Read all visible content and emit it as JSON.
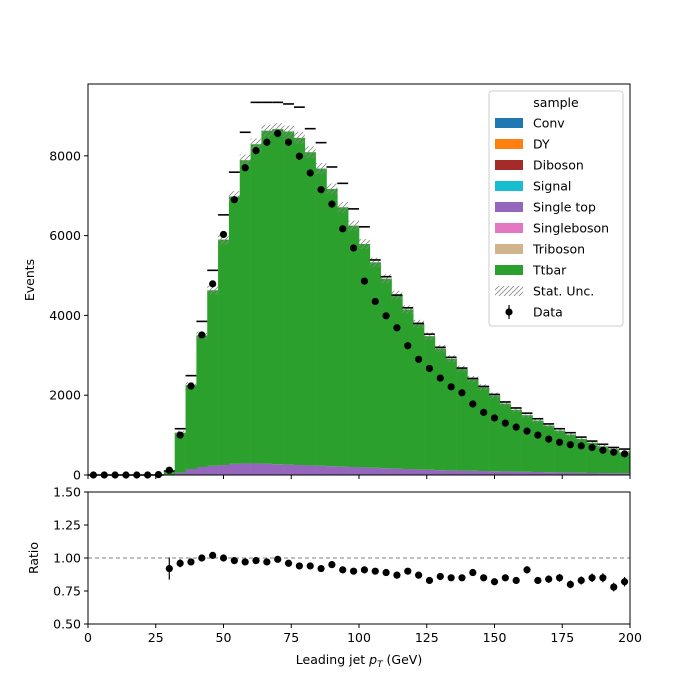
{
  "chart_data": {
    "type": "area",
    "xlabel": "Leading jet  p_T (GeV)",
    "xlabel_main": "Leading jet  ",
    "xlabel_p": "p",
    "xlabel_sub": "T",
    "xlabel_unit": " (GeV)",
    "ylabel": "Events",
    "ratio_ylabel": "Ratio",
    "xlim": [
      0,
      200
    ],
    "ylim": [
      0,
      9800
    ],
    "ratio_ylim": [
      0.5,
      1.5
    ],
    "bin_width": 4,
    "bin_edges_start": 0,
    "x_ticks": [
      "0",
      "25",
      "50",
      "75",
      "100",
      "125",
      "150",
      "175",
      "200"
    ],
    "y_ticks": [
      "0",
      "2000",
      "4000",
      "6000",
      "8000"
    ],
    "ratio_ticks": [
      "0.50",
      "0.75",
      "1.00",
      "1.25",
      "1.50"
    ],
    "legend": {
      "title": "sample",
      "placement": "top-right",
      "entries": [
        {
          "label": "Conv",
          "color": "#1f77b4",
          "kind": "patch"
        },
        {
          "label": "DY",
          "color": "#ff7f0e",
          "kind": "patch"
        },
        {
          "label": "Diboson",
          "color": "#a52a2a",
          "kind": "patch"
        },
        {
          "label": "Signal",
          "color": "#17becf",
          "kind": "patch"
        },
        {
          "label": "Single top",
          "color": "#9467bd",
          "kind": "patch"
        },
        {
          "label": "Singleboson",
          "color": "#e377c2",
          "kind": "patch"
        },
        {
          "label": "Triboson",
          "color": "#d2b48c",
          "kind": "patch"
        },
        {
          "label": "Ttbar",
          "color": "#2ca02c",
          "kind": "patch"
        },
        {
          "label": "Stat. Unc.",
          "color": "#888888",
          "kind": "hatch"
        },
        {
          "label": "Data",
          "color": "#000000",
          "kind": "marker"
        }
      ]
    },
    "series": [
      {
        "name": "Single top",
        "color": "#9467bd",
        "values": [
          0,
          0,
          0,
          0,
          0,
          0,
          0,
          3,
          60,
          150,
          200,
          230,
          250,
          280,
          290,
          290,
          280,
          270,
          260,
          250,
          240,
          230,
          220,
          210,
          200,
          190,
          180,
          170,
          160,
          150,
          140,
          130,
          120,
          115,
          110,
          105,
          100,
          95,
          90,
          85,
          80,
          75,
          70,
          65,
          60,
          55,
          50,
          48,
          46,
          44
        ]
      },
      {
        "name": "Ttbar",
        "color": "#2ca02c",
        "values": [
          0,
          0,
          0,
          0,
          0,
          0,
          0,
          80,
          1000,
          2100,
          3300,
          4400,
          5650,
          6700,
          7600,
          8000,
          8350,
          8400,
          8350,
          8200,
          7850,
          7450,
          6950,
          6500,
          6050,
          5600,
          5150,
          4750,
          4350,
          4000,
          3650,
          3350,
          3050,
          2800,
          2550,
          2300,
          2100,
          1900,
          1700,
          1550,
          1420,
          1290,
          1170,
          1050,
          955,
          850,
          760,
          670,
          600,
          520
        ]
      }
    ],
    "data_points": {
      "name": "Data",
      "values": [
        0,
        0,
        0,
        0,
        0,
        0,
        10,
        120,
        1000,
        2230,
        3510,
        4790,
        6030,
        6900,
        7700,
        8130,
        8340,
        8560,
        8340,
        7990,
        7570,
        7150,
        6790,
        6170,
        5690,
        4860,
        4350,
        3990,
        3690,
        3240,
        2900,
        2670,
        2430,
        2210,
        2060,
        1780,
        1570,
        1430,
        1300,
        1200,
        1100,
        1000,
        900,
        820,
        760,
        730,
        690,
        620,
        570,
        530
      ]
    },
    "mc_total_marks": [
      0,
      0,
      0,
      0,
      0,
      0,
      0,
      100,
      1160,
      2490,
      3850,
      5130,
      6520,
      7590,
      8590,
      9340,
      9340,
      9340,
      9300,
      9220,
      8680,
      8330,
      7720,
      7310,
      6670,
      6220,
      5390,
      4970,
      4510,
      4190,
      3800,
      3530,
      3200,
      2950,
      2680,
      2420,
      2220,
      2020,
      1830,
      1680,
      1550,
      1410,
      1280,
      1160,
      1060,
      950,
      850,
      770,
      690,
      650
    ],
    "ratio": [
      null,
      null,
      null,
      null,
      null,
      null,
      null,
      0.92,
      0.96,
      0.97,
      1.0,
      1.02,
      1.0,
      0.98,
      0.97,
      0.98,
      0.97,
      0.99,
      0.96,
      0.94,
      0.94,
      0.92,
      0.95,
      0.91,
      0.9,
      0.91,
      0.9,
      0.89,
      0.87,
      0.9,
      0.87,
      0.83,
      0.86,
      0.85,
      0.85,
      0.89,
      0.85,
      0.82,
      0.85,
      0.83,
      0.91,
      0.83,
      0.84,
      0.85,
      0.8,
      0.83,
      0.85,
      0.85,
      0.78,
      0.82
    ]
  }
}
